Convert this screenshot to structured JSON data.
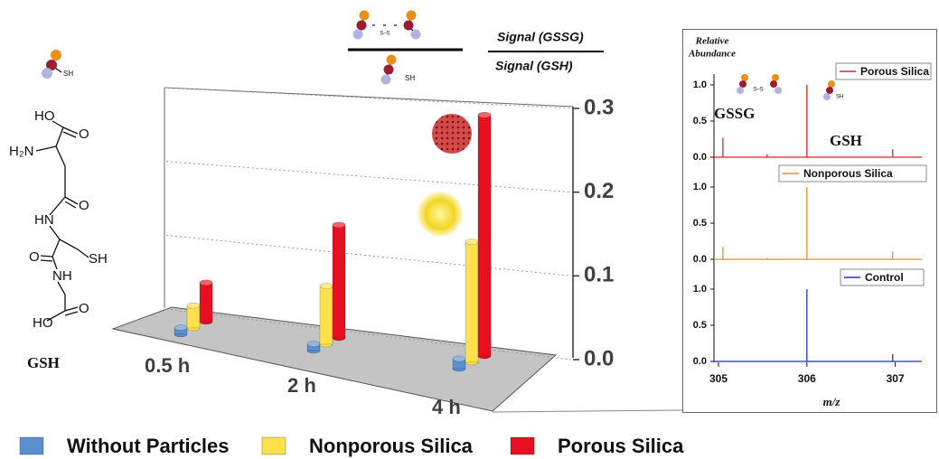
{
  "structure": {
    "atoms": [
      "HO",
      "O",
      "H₂N",
      "O",
      "HN",
      "SH",
      "O",
      "NH",
      "HO",
      "O"
    ],
    "name": "GSH"
  },
  "icon_labels": {
    "thiol": "SH",
    "disulfide": "S–S"
  },
  "formula": {
    "numerator": "Signal (GSSG)",
    "denominator": "Signal (GSH)"
  },
  "chart_data": [
    {
      "type": "bar3d",
      "categories": [
        "0.5 h",
        "2 h",
        "4 h"
      ],
      "series": [
        {
          "name": "Without Particles",
          "color": "#5b8fd0",
          "values": [
            0.008,
            0.008,
            0.012
          ]
        },
        {
          "name": "Nonporous Silica",
          "color": "#ffe14d",
          "values": [
            0.027,
            0.07,
            0.145
          ]
        },
        {
          "name": "Porous Silica",
          "color": "#e81020",
          "values": [
            0.047,
            0.136,
            0.29
          ]
        }
      ],
      "ylim": [
        0,
        0.3
      ],
      "yticks": [
        {
          "value": 0,
          "label": "0.0"
        },
        0.1,
        0.2,
        0.3
      ],
      "grid": true,
      "legend": "bottom"
    },
    {
      "type": "stem",
      "y_label_lines": [
        "Relative",
        "Abundance"
      ],
      "x_label": "m/z",
      "xlim": [
        305,
        307.3
      ],
      "xticks": [
        305,
        306,
        307
      ],
      "ylim": [
        0,
        1
      ],
      "yticks": [
        {
          "value": 0,
          "label": "0.0"
        },
        0.5,
        {
          "value": 1,
          "label": "1.0"
        }
      ],
      "series": [
        {
          "name": "Porous Silica",
          "color": "#e0202a",
          "x": [
            305.05,
            305.55,
            306.0,
            306.97
          ],
          "values": [
            0.27,
            0.04,
            1.0,
            0.11
          ]
        },
        {
          "name": "Nonporous Silica",
          "color": "#f08a30",
          "x": [
            305.05,
            305.55,
            306.0,
            306.97
          ],
          "values": [
            0.17,
            0.02,
            1.0,
            0.11
          ]
        },
        {
          "name": "Control",
          "color": "#1f2fd6",
          "x": [
            306.0,
            306.97
          ],
          "values": [
            1.0,
            0.1
          ]
        }
      ],
      "annotations": [
        "GSSG",
        "GSH"
      ]
    }
  ]
}
